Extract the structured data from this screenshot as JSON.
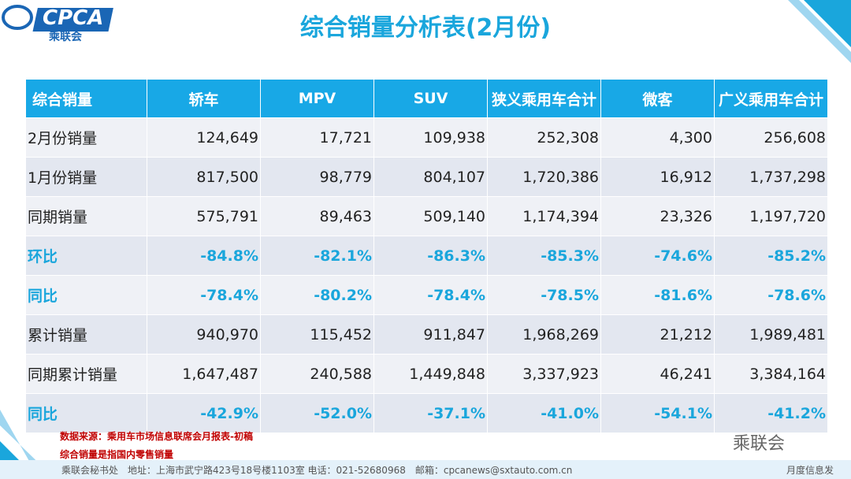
{
  "header": {
    "logo": "CPCA",
    "logo_sub": "乘联会",
    "title": "综合销量分析表(2月份)"
  },
  "table": {
    "columns": [
      "综合销量",
      "轿车",
      "MPV",
      "SUV",
      "狭义乘用车合计",
      "微客",
      "广义乘用车合计"
    ],
    "rows": [
      [
        "2月份销量",
        "124,649",
        "17,721",
        "109,938",
        "252,308",
        "4,300",
        "256,608"
      ],
      [
        "1月份销量",
        "817,500",
        "98,779",
        "804,107",
        "1,720,386",
        "16,912",
        "1,737,298"
      ],
      [
        "同期销量",
        "575,791",
        "89,463",
        "509,140",
        "1,174,394",
        "23,326",
        "1,197,720"
      ],
      [
        "环比",
        "-84.8%",
        "-82.1%",
        "-86.3%",
        "-85.3%",
        "-74.6%",
        "-85.2%"
      ],
      [
        "同比",
        "-78.4%",
        "-80.2%",
        "-78.4%",
        "-78.5%",
        "-81.6%",
        "-78.6%"
      ],
      [
        "累计销量",
        "940,970",
        "115,452",
        "911,847",
        "1,968,269",
        "21,212",
        "1,989,481"
      ],
      [
        "同期累计销量",
        "1,647,487",
        "240,588",
        "1,449,848",
        "3,337,923",
        "46,241",
        "3,384,164"
      ],
      [
        "同比",
        "-42.9%",
        "-52.0%",
        "-37.1%",
        "-41.0%",
        "-54.1%",
        "-41.2%"
      ]
    ]
  },
  "notes": [
    "数据来源：乘用车市场信息联席会月报表-初稿",
    "综合销量是指国内零售销量"
  ],
  "watermark": "乘联会",
  "footer": {
    "address": "乘联会秘书处　地址：上海市武宁路423号18号楼1103室 电话：021-52680968　邮箱：cpcanews@sxtauto.com.cn",
    "right": "月度信息发"
  }
}
